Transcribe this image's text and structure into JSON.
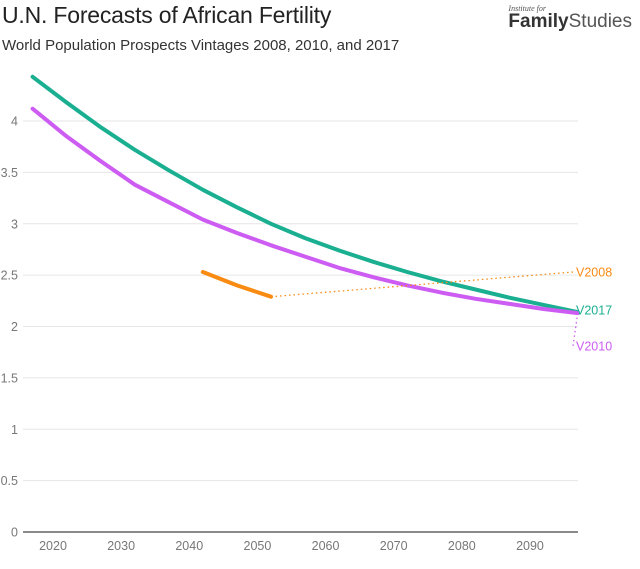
{
  "header": {
    "title": "U.N. Forecasts of African Fertility",
    "subtitle": "World Population Prospects Vintages 2008, 2010, and 2017"
  },
  "logo": {
    "line1": "Institute for",
    "bold": "Family",
    "light": "Studies"
  },
  "chart_data": {
    "type": "line",
    "title": "U.N. Forecasts of African Fertility",
    "subtitle": "World Population Prospects Vintages 2008, 2010, and 2017",
    "xlabel": "",
    "ylabel": "",
    "xlim": [
      2017,
      2100
    ],
    "ylim": [
      0,
      4.5
    ],
    "x_ticks": [
      2020,
      2030,
      2040,
      2050,
      2060,
      2070,
      2080,
      2090
    ],
    "y_ticks": [
      0,
      0.5,
      1,
      1.5,
      2,
      2.5,
      3,
      3.5,
      4
    ],
    "y_tick_labels": [
      "0",
      "0.5",
      "1",
      "1.5",
      "2",
      "2.5",
      "3",
      "3.5",
      "4"
    ],
    "grid": true,
    "legend": "direct labels at right",
    "series": [
      {
        "name": "V2017",
        "color": "#1aaf91",
        "x": [
          2017,
          2022,
          2027,
          2032,
          2037,
          2042,
          2047,
          2052,
          2057,
          2062,
          2067,
          2072,
          2077,
          2082,
          2087,
          2092,
          2097
        ],
        "values": [
          4.43,
          4.18,
          3.94,
          3.72,
          3.52,
          3.33,
          3.16,
          3.0,
          2.86,
          2.74,
          2.63,
          2.53,
          2.44,
          2.36,
          2.28,
          2.21,
          2.14
        ]
      },
      {
        "name": "V2010",
        "color": "#cd5cf2",
        "x": [
          2017,
          2022,
          2027,
          2032,
          2037,
          2042,
          2047,
          2052,
          2057,
          2062,
          2067,
          2072,
          2077,
          2082,
          2087,
          2092,
          2097
        ],
        "values": [
          4.12,
          3.85,
          3.61,
          3.38,
          3.21,
          3.04,
          2.91,
          2.79,
          2.68,
          2.57,
          2.48,
          2.4,
          2.33,
          2.27,
          2.22,
          2.17,
          2.13
        ]
      },
      {
        "name": "V2008",
        "color": "#f98a12",
        "x": [
          2042,
          2047,
          2052
        ],
        "values": [
          2.53,
          2.4,
          2.29
        ]
      }
    ],
    "annotations": [
      {
        "text": "V2008",
        "color": "#f98a12",
        "anchor_value": 2.53
      },
      {
        "text": "V2017",
        "color": "#1aaf91",
        "anchor_value": 2.16
      },
      {
        "text": "V2010",
        "color": "#cd5cf2",
        "anchor_value": 1.81
      }
    ]
  }
}
